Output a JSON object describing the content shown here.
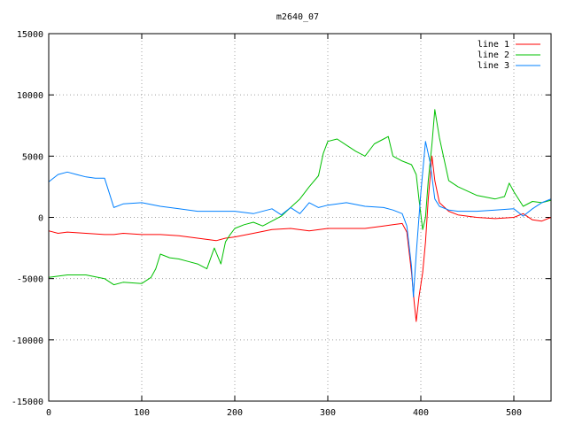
{
  "chart_data": {
    "type": "line",
    "title": "m2640_07",
    "xlabel": "",
    "ylabel": "",
    "xlim": [
      0,
      540
    ],
    "ylim": [
      -15000,
      15000
    ],
    "xticks": [
      0,
      100,
      200,
      300,
      400,
      500
    ],
    "yticks": [
      -15000,
      -10000,
      -5000,
      0,
      5000,
      10000,
      15000
    ],
    "xtick_labels": [
      "0",
      "100",
      "200",
      "300",
      "400",
      "500"
    ],
    "ytick_labels": [
      "-15000",
      "-10000",
      "-5000",
      "0",
      "5000",
      "10000",
      "15000"
    ],
    "grid": true,
    "legend_position": "top-right",
    "series": [
      {
        "name": "line 1",
        "color": "#ff0000",
        "points": [
          [
            0,
            -1100
          ],
          [
            10,
            -1300
          ],
          [
            20,
            -1200
          ],
          [
            40,
            -1300
          ],
          [
            60,
            -1400
          ],
          [
            70,
            -1400
          ],
          [
            80,
            -1300
          ],
          [
            100,
            -1400
          ],
          [
            120,
            -1400
          ],
          [
            140,
            -1500
          ],
          [
            160,
            -1700
          ],
          [
            180,
            -1900
          ],
          [
            190,
            -1700
          ],
          [
            200,
            -1600
          ],
          [
            220,
            -1300
          ],
          [
            240,
            -1000
          ],
          [
            260,
            -900
          ],
          [
            280,
            -1100
          ],
          [
            300,
            -900
          ],
          [
            320,
            -900
          ],
          [
            340,
            -900
          ],
          [
            360,
            -700
          ],
          [
            370,
            -600
          ],
          [
            380,
            -500
          ],
          [
            385,
            -1200
          ],
          [
            390,
            -4500
          ],
          [
            393,
            -7000
          ],
          [
            395,
            -8500
          ],
          [
            398,
            -6500
          ],
          [
            402,
            -4500
          ],
          [
            405,
            -2000
          ],
          [
            408,
            1500
          ],
          [
            412,
            5000
          ],
          [
            415,
            3000
          ],
          [
            420,
            1200
          ],
          [
            430,
            500
          ],
          [
            440,
            200
          ],
          [
            460,
            0
          ],
          [
            480,
            -100
          ],
          [
            500,
            0
          ],
          [
            510,
            300
          ],
          [
            520,
            -200
          ],
          [
            530,
            -300
          ],
          [
            540,
            0
          ]
        ]
      },
      {
        "name": "line 2",
        "color": "#00c000",
        "points": [
          [
            0,
            -4900
          ],
          [
            10,
            -4800
          ],
          [
            20,
            -4700
          ],
          [
            40,
            -4700
          ],
          [
            60,
            -5000
          ],
          [
            70,
            -5500
          ],
          [
            80,
            -5300
          ],
          [
            100,
            -5400
          ],
          [
            110,
            -4900
          ],
          [
            115,
            -4200
          ],
          [
            120,
            -3000
          ],
          [
            130,
            -3300
          ],
          [
            140,
            -3400
          ],
          [
            150,
            -3600
          ],
          [
            160,
            -3800
          ],
          [
            170,
            -4200
          ],
          [
            178,
            -2500
          ],
          [
            185,
            -3800
          ],
          [
            190,
            -2000
          ],
          [
            195,
            -1400
          ],
          [
            200,
            -900
          ],
          [
            210,
            -600
          ],
          [
            220,
            -400
          ],
          [
            230,
            -700
          ],
          [
            240,
            -300
          ],
          [
            250,
            100
          ],
          [
            260,
            800
          ],
          [
            270,
            1500
          ],
          [
            280,
            2500
          ],
          [
            290,
            3400
          ],
          [
            295,
            5200
          ],
          [
            300,
            6200
          ],
          [
            310,
            6400
          ],
          [
            320,
            5900
          ],
          [
            330,
            5400
          ],
          [
            340,
            5000
          ],
          [
            350,
            6000
          ],
          [
            360,
            6400
          ],
          [
            365,
            6600
          ],
          [
            370,
            5000
          ],
          [
            380,
            4600
          ],
          [
            390,
            4300
          ],
          [
            395,
            3500
          ],
          [
            398,
            1500
          ],
          [
            402,
            -1000
          ],
          [
            405,
            0
          ],
          [
            408,
            3000
          ],
          [
            412,
            6000
          ],
          [
            415,
            8800
          ],
          [
            420,
            6500
          ],
          [
            430,
            3000
          ],
          [
            440,
            2500
          ],
          [
            460,
            1800
          ],
          [
            480,
            1500
          ],
          [
            490,
            1700
          ],
          [
            495,
            2800
          ],
          [
            500,
            2100
          ],
          [
            510,
            900
          ],
          [
            520,
            1300
          ],
          [
            530,
            1200
          ],
          [
            540,
            1400
          ]
        ]
      },
      {
        "name": "line 3",
        "color": "#0080ff",
        "points": [
          [
            0,
            2900
          ],
          [
            10,
            3500
          ],
          [
            20,
            3700
          ],
          [
            30,
            3500
          ],
          [
            40,
            3300
          ],
          [
            50,
            3200
          ],
          [
            60,
            3200
          ],
          [
            65,
            2000
          ],
          [
            70,
            800
          ],
          [
            80,
            1100
          ],
          [
            100,
            1200
          ],
          [
            120,
            900
          ],
          [
            140,
            700
          ],
          [
            160,
            500
          ],
          [
            180,
            500
          ],
          [
            200,
            500
          ],
          [
            220,
            300
          ],
          [
            240,
            700
          ],
          [
            250,
            200
          ],
          [
            260,
            800
          ],
          [
            270,
            300
          ],
          [
            280,
            1200
          ],
          [
            290,
            800
          ],
          [
            300,
            1000
          ],
          [
            320,
            1200
          ],
          [
            340,
            900
          ],
          [
            360,
            800
          ],
          [
            370,
            600
          ],
          [
            380,
            300
          ],
          [
            385,
            -700
          ],
          [
            390,
            -4000
          ],
          [
            392,
            -6500
          ],
          [
            395,
            -3000
          ],
          [
            400,
            2000
          ],
          [
            405,
            6200
          ],
          [
            410,
            4500
          ],
          [
            415,
            1500
          ],
          [
            420,
            900
          ],
          [
            430,
            600
          ],
          [
            440,
            500
          ],
          [
            460,
            500
          ],
          [
            480,
            600
          ],
          [
            500,
            700
          ],
          [
            510,
            100
          ],
          [
            520,
            700
          ],
          [
            530,
            1200
          ],
          [
            540,
            1500
          ]
        ]
      }
    ]
  }
}
